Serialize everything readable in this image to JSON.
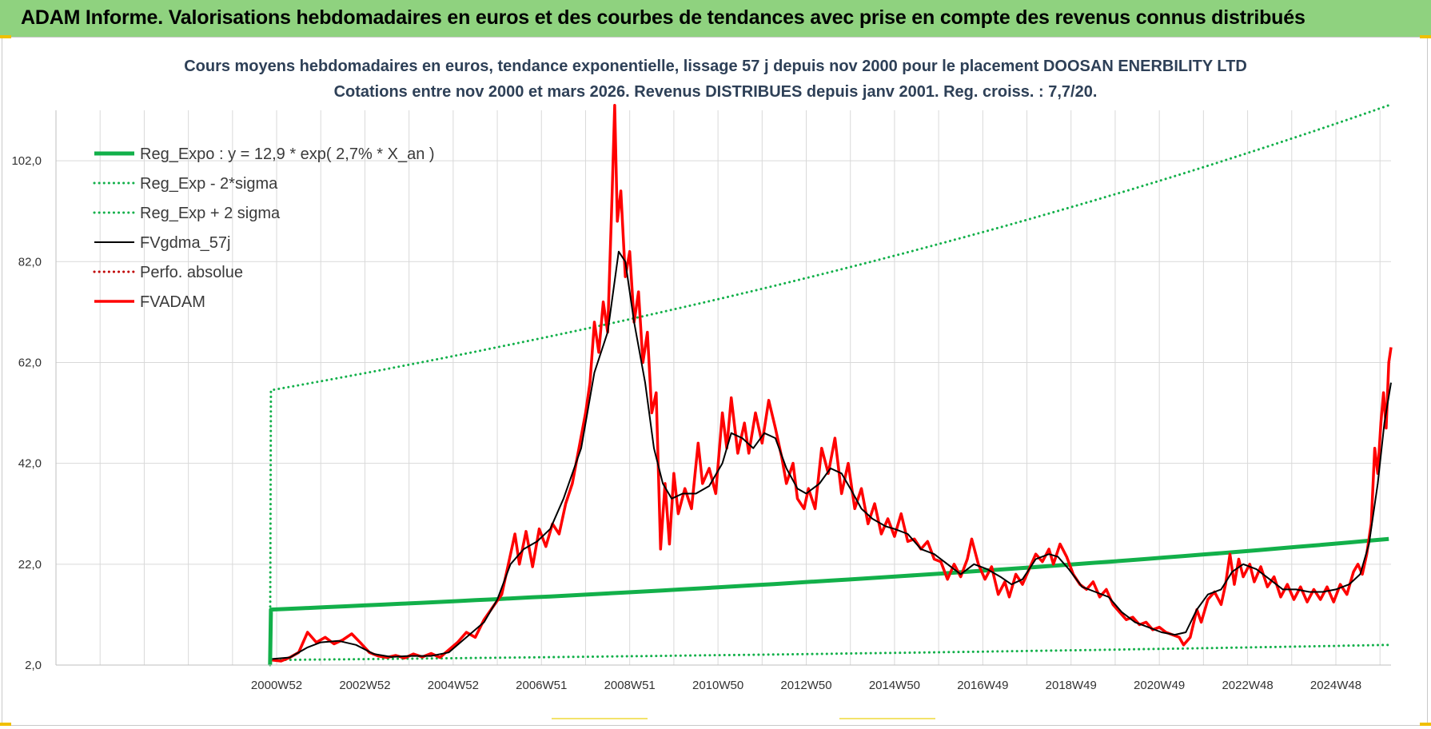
{
  "header": {
    "banner_title": "ADAM Informe. Valorisations hebdomadaires en euros et des courbes de tendances avec prise en compte des revenus connus distribués"
  },
  "chart_data": {
    "type": "line",
    "title": "Cours moyens hebdomadaires en euros, tendance exponentielle, lissage 57 j depuis nov 2000 pour le placement DOOSAN ENERBILITY  LTD",
    "subtitle": "Cotations entre nov 2000 et mars 2026. Revenus DISTRIBUES depuis janv 2001. Reg. croiss. : 7,7/20.",
    "xlabel": "",
    "ylabel": "",
    "ylim": [
      2,
      112
    ],
    "yticks": [
      "2,0",
      "22,0",
      "42,0",
      "62,0",
      "82,0",
      "102,0"
    ],
    "xticks": [
      "2000W52",
      "2002W52",
      "2004W52",
      "2006W51",
      "2008W51",
      "2010W50",
      "2012W50",
      "2014W50",
      "2016W49",
      "2018W49",
      "2020W49",
      "2022W48",
      "2024W48"
    ],
    "xtick_years": [
      2001,
      2003,
      2005,
      2007,
      2009,
      2011,
      2013,
      2015,
      2017,
      2019,
      2021,
      2023,
      2025
    ],
    "xlim_years": [
      1996.0,
      2026.25
    ],
    "grid": true,
    "legend_position": "top-left",
    "colors": {
      "green": "#12b04a",
      "black": "#000000",
      "red": "#ff0000",
      "darkred": "#c00000",
      "grid": "#d9d9d9"
    },
    "series": [
      {
        "name": "Reg_Expo : y = 12,9 * exp( 2,7% *  X_an )",
        "style": "solid-thick",
        "color": "#12b04a",
        "points": [
          [
            2000.85,
            2.0
          ],
          [
            2000.87,
            13.0
          ],
          [
            2026.2,
            27.0
          ]
        ]
      },
      {
        "name": "Reg_Exp - 2*sigma",
        "style": "dotted",
        "color": "#12b04a",
        "points": [
          [
            2000.87,
            3.0
          ],
          [
            2026.2,
            6.0
          ]
        ]
      },
      {
        "name": "Reg_Exp + 2 sigma",
        "style": "dotted",
        "color": "#12b04a",
        "points": [
          [
            2000.85,
            2.0
          ],
          [
            2000.87,
            56.5
          ],
          [
            2026.2,
            113.0
          ]
        ]
      },
      {
        "name": "FVgdma_57j",
        "style": "solid",
        "color": "#000000",
        "points": [
          [
            2000.9,
            3.2
          ],
          [
            2001.3,
            3.5
          ],
          [
            2001.7,
            5.5
          ],
          [
            2002.0,
            6.5
          ],
          [
            2002.4,
            6.8
          ],
          [
            2002.8,
            6.0
          ],
          [
            2003.2,
            4.2
          ],
          [
            2003.6,
            3.6
          ],
          [
            2004.0,
            3.8
          ],
          [
            2004.5,
            3.8
          ],
          [
            2004.9,
            4.5
          ],
          [
            2005.3,
            7.5
          ],
          [
            2005.7,
            10.5
          ],
          [
            2006.0,
            15.0
          ],
          [
            2006.3,
            22.0
          ],
          [
            2006.6,
            25.0
          ],
          [
            2006.9,
            26.5
          ],
          [
            2007.2,
            29.0
          ],
          [
            2007.5,
            35.0
          ],
          [
            2007.9,
            45.0
          ],
          [
            2008.2,
            60.0
          ],
          [
            2008.5,
            68.0
          ],
          [
            2008.75,
            84.0
          ],
          [
            2008.9,
            82.0
          ],
          [
            2009.1,
            70.0
          ],
          [
            2009.35,
            58.0
          ],
          [
            2009.55,
            45.0
          ],
          [
            2009.75,
            38.0
          ],
          [
            2009.95,
            35.0
          ],
          [
            2010.2,
            36.0
          ],
          [
            2010.5,
            36.0
          ],
          [
            2010.8,
            37.5
          ],
          [
            2011.1,
            42.0
          ],
          [
            2011.3,
            48.0
          ],
          [
            2011.55,
            47.0
          ],
          [
            2011.8,
            45.0
          ],
          [
            2012.05,
            48.0
          ],
          [
            2012.3,
            47.0
          ],
          [
            2012.55,
            41.0
          ],
          [
            2012.8,
            37.0
          ],
          [
            2013.0,
            36.0
          ],
          [
            2013.3,
            38.0
          ],
          [
            2013.55,
            41.0
          ],
          [
            2013.8,
            40.0
          ],
          [
            2014.0,
            37.0
          ],
          [
            2014.25,
            33.0
          ],
          [
            2014.5,
            31.0
          ],
          [
            2014.8,
            29.5
          ],
          [
            2015.0,
            29.0
          ],
          [
            2015.3,
            28.0
          ],
          [
            2015.6,
            25.0
          ],
          [
            2015.9,
            24.0
          ],
          [
            2016.2,
            22.0
          ],
          [
            2016.5,
            20.0
          ],
          [
            2016.8,
            22.0
          ],
          [
            2017.1,
            21.0
          ],
          [
            2017.4,
            19.5
          ],
          [
            2017.65,
            18.0
          ],
          [
            2017.9,
            19.0
          ],
          [
            2018.2,
            23.0
          ],
          [
            2018.5,
            24.0
          ],
          [
            2018.7,
            23.5
          ],
          [
            2018.95,
            21.0
          ],
          [
            2019.25,
            17.5
          ],
          [
            2019.55,
            16.5
          ],
          [
            2019.85,
            15.5
          ],
          [
            2020.15,
            12.5
          ],
          [
            2020.45,
            10.5
          ],
          [
            2020.75,
            9.5
          ],
          [
            2021.05,
            8.5
          ],
          [
            2021.35,
            8.0
          ],
          [
            2021.6,
            8.5
          ],
          [
            2021.85,
            13.0
          ],
          [
            2022.1,
            16.0
          ],
          [
            2022.4,
            17.0
          ],
          [
            2022.65,
            20.5
          ],
          [
            2022.9,
            22.0
          ],
          [
            2023.2,
            21.0
          ],
          [
            2023.5,
            19.0
          ],
          [
            2023.8,
            17.0
          ],
          [
            2024.1,
            17.0
          ],
          [
            2024.4,
            16.5
          ],
          [
            2024.7,
            16.5
          ],
          [
            2025.0,
            17.0
          ],
          [
            2025.3,
            18.0
          ],
          [
            2025.55,
            20.0
          ],
          [
            2025.75,
            26.0
          ],
          [
            2025.95,
            38.0
          ],
          [
            2026.1,
            50.0
          ],
          [
            2026.25,
            58.0
          ]
        ]
      },
      {
        "name": "Perfo. absolue",
        "style": "dotted",
        "color": "#c00000",
        "points": []
      },
      {
        "name": "FVADAM",
        "style": "solid-thick",
        "color": "#ff0000",
        "points": [
          [
            2000.9,
            3.0
          ],
          [
            2001.1,
            2.8
          ],
          [
            2001.3,
            3.5
          ],
          [
            2001.5,
            4.5
          ],
          [
            2001.7,
            8.5
          ],
          [
            2001.9,
            6.5
          ],
          [
            2002.1,
            7.5
          ],
          [
            2002.3,
            6.2
          ],
          [
            2002.5,
            7.0
          ],
          [
            2002.7,
            8.2
          ],
          [
            2002.9,
            6.4
          ],
          [
            2003.1,
            4.5
          ],
          [
            2003.3,
            3.8
          ],
          [
            2003.5,
            3.5
          ],
          [
            2003.7,
            3.9
          ],
          [
            2003.9,
            3.4
          ],
          [
            2004.1,
            4.2
          ],
          [
            2004.3,
            3.6
          ],
          [
            2004.5,
            4.3
          ],
          [
            2004.7,
            3.5
          ],
          [
            2004.9,
            5.0
          ],
          [
            2005.1,
            6.5
          ],
          [
            2005.3,
            8.5
          ],
          [
            2005.5,
            7.5
          ],
          [
            2005.7,
            11.0
          ],
          [
            2005.9,
            13.5
          ],
          [
            2006.1,
            16.0
          ],
          [
            2006.25,
            22.0
          ],
          [
            2006.4,
            28.0
          ],
          [
            2006.5,
            22.0
          ],
          [
            2006.65,
            28.5
          ],
          [
            2006.8,
            21.5
          ],
          [
            2006.95,
            29.0
          ],
          [
            2007.1,
            25.5
          ],
          [
            2007.25,
            30.0
          ],
          [
            2007.4,
            28.0
          ],
          [
            2007.55,
            34.0
          ],
          [
            2007.7,
            38.0
          ],
          [
            2007.85,
            45.0
          ],
          [
            2008.0,
            52.0
          ],
          [
            2008.1,
            58.0
          ],
          [
            2008.2,
            70.0
          ],
          [
            2008.3,
            64.0
          ],
          [
            2008.4,
            74.0
          ],
          [
            2008.5,
            68.0
          ],
          [
            2008.6,
            95.0
          ],
          [
            2008.66,
            113.0
          ],
          [
            2008.72,
            90.0
          ],
          [
            2008.8,
            96.0
          ],
          [
            2008.9,
            79.0
          ],
          [
            2009.0,
            84.0
          ],
          [
            2009.1,
            70.0
          ],
          [
            2009.2,
            76.0
          ],
          [
            2009.3,
            62.0
          ],
          [
            2009.4,
            68.0
          ],
          [
            2009.5,
            52.0
          ],
          [
            2009.6,
            56.0
          ],
          [
            2009.7,
            25.0
          ],
          [
            2009.8,
            38.0
          ],
          [
            2009.9,
            26.0
          ],
          [
            2010.0,
            40.0
          ],
          [
            2010.1,
            32.0
          ],
          [
            2010.25,
            37.0
          ],
          [
            2010.4,
            33.0
          ],
          [
            2010.55,
            46.0
          ],
          [
            2010.65,
            38.0
          ],
          [
            2010.8,
            41.0
          ],
          [
            2010.95,
            36.0
          ],
          [
            2011.1,
            52.0
          ],
          [
            2011.2,
            45.0
          ],
          [
            2011.3,
            55.0
          ],
          [
            2011.45,
            44.0
          ],
          [
            2011.6,
            50.0
          ],
          [
            2011.7,
            44.0
          ],
          [
            2011.85,
            52.0
          ],
          [
            2012.0,
            46.0
          ],
          [
            2012.15,
            54.5
          ],
          [
            2012.3,
            49.0
          ],
          [
            2012.45,
            43.0
          ],
          [
            2012.55,
            38.0
          ],
          [
            2012.7,
            42.0
          ],
          [
            2012.8,
            35.0
          ],
          [
            2012.95,
            33.0
          ],
          [
            2013.05,
            37.0
          ],
          [
            2013.2,
            33.0
          ],
          [
            2013.35,
            45.0
          ],
          [
            2013.5,
            40.0
          ],
          [
            2013.65,
            47.0
          ],
          [
            2013.8,
            36.0
          ],
          [
            2013.95,
            42.0
          ],
          [
            2014.1,
            33.0
          ],
          [
            2014.25,
            37.0
          ],
          [
            2014.4,
            30.0
          ],
          [
            2014.55,
            34.0
          ],
          [
            2014.7,
            28.0
          ],
          [
            2014.85,
            31.0
          ],
          [
            2015.0,
            27.5
          ],
          [
            2015.15,
            32.0
          ],
          [
            2015.3,
            26.5
          ],
          [
            2015.45,
            27.0
          ],
          [
            2015.6,
            25.0
          ],
          [
            2015.75,
            26.5
          ],
          [
            2015.9,
            23.0
          ],
          [
            2016.05,
            22.5
          ],
          [
            2016.2,
            19.0
          ],
          [
            2016.35,
            22.0
          ],
          [
            2016.5,
            19.5
          ],
          [
            2016.65,
            23.0
          ],
          [
            2016.75,
            27.0
          ],
          [
            2016.9,
            22.0
          ],
          [
            2017.05,
            19.0
          ],
          [
            2017.2,
            21.5
          ],
          [
            2017.35,
            16.0
          ],
          [
            2017.5,
            18.5
          ],
          [
            2017.6,
            15.5
          ],
          [
            2017.75,
            20.0
          ],
          [
            2017.9,
            18.0
          ],
          [
            2018.05,
            21.0
          ],
          [
            2018.2,
            24.0
          ],
          [
            2018.35,
            22.5
          ],
          [
            2018.5,
            25.0
          ],
          [
            2018.6,
            22.0
          ],
          [
            2018.75,
            26.0
          ],
          [
            2018.9,
            23.5
          ],
          [
            2019.05,
            20.0
          ],
          [
            2019.2,
            18.0
          ],
          [
            2019.35,
            17.0
          ],
          [
            2019.5,
            18.5
          ],
          [
            2019.65,
            15.5
          ],
          [
            2019.8,
            17.0
          ],
          [
            2019.95,
            14.0
          ],
          [
            2020.1,
            12.5
          ],
          [
            2020.25,
            11.0
          ],
          [
            2020.4,
            11.5
          ],
          [
            2020.55,
            10.0
          ],
          [
            2020.7,
            10.5
          ],
          [
            2020.85,
            9.0
          ],
          [
            2021.0,
            9.5
          ],
          [
            2021.15,
            8.5
          ],
          [
            2021.3,
            8.0
          ],
          [
            2021.45,
            7.5
          ],
          [
            2021.55,
            6.0
          ],
          [
            2021.7,
            7.5
          ],
          [
            2021.85,
            13.0
          ],
          [
            2021.95,
            10.5
          ],
          [
            2022.1,
            15.0
          ],
          [
            2022.25,
            16.5
          ],
          [
            2022.4,
            14.0
          ],
          [
            2022.5,
            18.0
          ],
          [
            2022.6,
            24.0
          ],
          [
            2022.7,
            18.0
          ],
          [
            2022.8,
            23.0
          ],
          [
            2022.9,
            19.5
          ],
          [
            2023.05,
            22.0
          ],
          [
            2023.15,
            18.5
          ],
          [
            2023.3,
            21.5
          ],
          [
            2023.45,
            17.5
          ],
          [
            2023.6,
            19.5
          ],
          [
            2023.75,
            15.5
          ],
          [
            2023.9,
            18.0
          ],
          [
            2024.05,
            15.0
          ],
          [
            2024.2,
            17.5
          ],
          [
            2024.35,
            14.5
          ],
          [
            2024.5,
            17.0
          ],
          [
            2024.65,
            15.0
          ],
          [
            2024.8,
            17.5
          ],
          [
            2024.95,
            14.5
          ],
          [
            2025.1,
            18.0
          ],
          [
            2025.25,
            16.0
          ],
          [
            2025.4,
            20.5
          ],
          [
            2025.5,
            22.0
          ],
          [
            2025.6,
            20.0
          ],
          [
            2025.7,
            24.0
          ],
          [
            2025.8,
            30.0
          ],
          [
            2025.88,
            45.0
          ],
          [
            2025.95,
            40.0
          ],
          [
            2026.02,
            50.0
          ],
          [
            2026.08,
            56.0
          ],
          [
            2026.14,
            49.0
          ],
          [
            2026.2,
            62.0
          ],
          [
            2026.25,
            65.0
          ]
        ]
      }
    ]
  }
}
